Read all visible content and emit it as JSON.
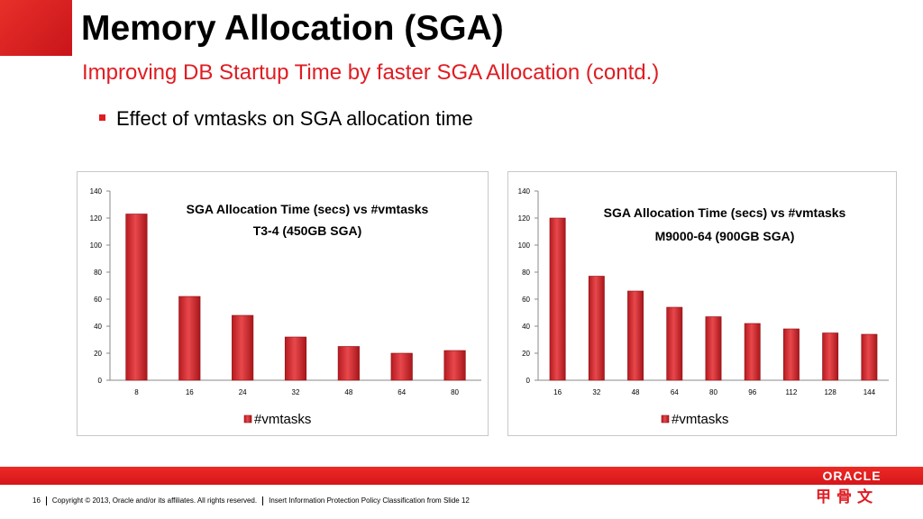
{
  "slide": {
    "title": "Memory Allocation (SGA)",
    "subtitle": "Improving DB Startup Time by faster SGA Allocation (contd.)",
    "bullet": "Effect of vmtasks on SGA allocation time"
  },
  "chart_data": [
    {
      "type": "bar",
      "title_line1": "SGA Allocation Time (secs) vs #vmtasks",
      "title_line2": "T3-4 (450GB SGA)",
      "categories": [
        "8",
        "16",
        "24",
        "32",
        "48",
        "64",
        "80"
      ],
      "series": [
        {
          "name": "#vmtasks",
          "values": [
            123,
            62,
            48,
            32,
            25,
            20,
            22
          ]
        }
      ],
      "yticks": [
        "0",
        "20",
        "40",
        "60",
        "80",
        "100",
        "120",
        "140"
      ],
      "ylim": [
        0,
        140
      ],
      "grid": false,
      "legend": "bottom"
    },
    {
      "type": "bar",
      "title_line1": "SGA Allocation Time (secs) vs #vmtasks",
      "title_line2": "M9000-64 (900GB SGA)",
      "categories": [
        "16",
        "32",
        "48",
        "64",
        "80",
        "96",
        "112",
        "128",
        "144"
      ],
      "series": [
        {
          "name": "#vmtasks",
          "values": [
            120,
            77,
            66,
            54,
            47,
            42,
            38,
            35,
            34
          ]
        }
      ],
      "yticks": [
        "0",
        "20",
        "40",
        "60",
        "80",
        "100",
        "120",
        "140"
      ],
      "ylim": [
        0,
        140
      ],
      "grid": false,
      "legend": "bottom"
    }
  ],
  "footer": {
    "page": "16",
    "copyright": "Copyright © 2013, Oracle and/or its affiliates. All rights reserved.",
    "classification": "Insert Information Protection Policy Classification from Slide 12"
  },
  "brand": {
    "logo_text": "ORACLE",
    "cn_text": "甲骨文",
    "accent": "#e01c22"
  }
}
